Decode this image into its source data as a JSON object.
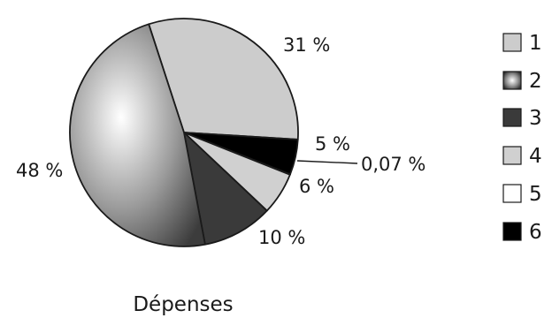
{
  "chart_data": {
    "type": "pie",
    "title": "Dépenses",
    "slices": [
      {
        "legend": "1",
        "value": 31,
        "label": "31 %",
        "fill": "#cccccc"
      },
      {
        "legend": "2",
        "value": 48,
        "label": "48 %",
        "fill": "radial-gray"
      },
      {
        "legend": "3",
        "value": 10,
        "label": "10 %",
        "fill": "#3a3a3a"
      },
      {
        "legend": "4",
        "value": 6,
        "label": "6 %",
        "fill": "#d0d0d0"
      },
      {
        "legend": "5",
        "value": 0.07,
        "label": "0,07 %",
        "fill": "#ffffff"
      },
      {
        "legend": "6",
        "value": 5,
        "label": "5 %",
        "fill": "#000000"
      }
    ],
    "legend_position": "right"
  }
}
